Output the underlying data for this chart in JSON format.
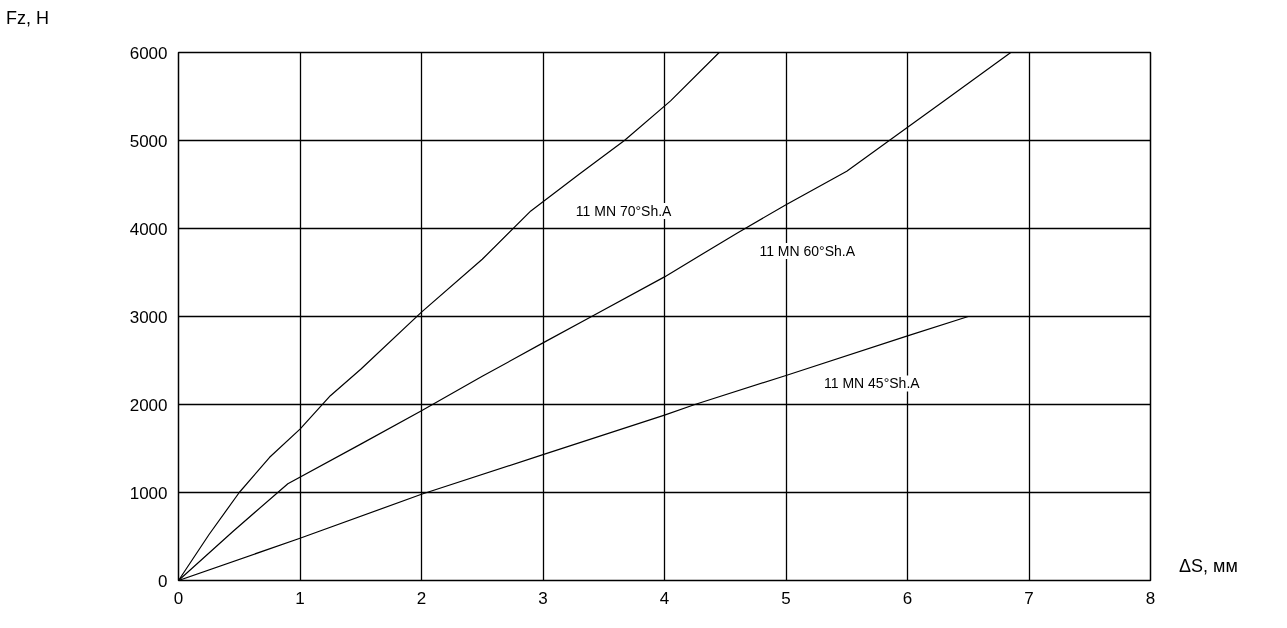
{
  "chart_data": {
    "type": "line",
    "xlabel": "ΔS, мм",
    "ylabel": "Fz, H",
    "xlim": [
      0,
      8
    ],
    "ylim": [
      0,
      6000
    ],
    "xticks": [
      0,
      1,
      2,
      3,
      4,
      5,
      6,
      7,
      8
    ],
    "yticks": [
      0,
      1000,
      2000,
      3000,
      4000,
      5000,
      6000
    ],
    "grid": true,
    "marker": "none",
    "line_style": "solid",
    "series": [
      {
        "name": "11 MN 70°Sh.A",
        "color": "#000000",
        "x": [
          0,
          0.25,
          0.5,
          0.75,
          1,
          1.25,
          1.5,
          2,
          2.5,
          2.9,
          3.3,
          3.67,
          4.05,
          4.45
        ],
        "values": [
          0,
          520,
          1000,
          1400,
          1720,
          2100,
          2400,
          3050,
          3650,
          4200,
          4620,
          5000,
          5450,
          6000
        ]
      },
      {
        "name": "11 MN 60°Sh.A",
        "color": "#000000",
        "x": [
          0,
          0.45,
          0.9,
          1.5,
          2,
          2.5,
          3,
          3.4,
          4,
          4.6,
          5,
          5.5,
          5.85,
          6.3,
          6.85
        ],
        "values": [
          0,
          560,
          1100,
          1550,
          1930,
          2320,
          2700,
          3000,
          3450,
          3950,
          4270,
          4650,
          5000,
          5450,
          6000
        ]
      },
      {
        "name": "11 MN 45°Sh.A",
        "color": "#000000",
        "x": [
          0,
          1,
          2,
          3,
          4,
          4.25,
          5,
          6,
          6.5
        ],
        "values": [
          0,
          480,
          980,
          1430,
          1880,
          2000,
          2330,
          2780,
          3000
        ]
      }
    ]
  }
}
